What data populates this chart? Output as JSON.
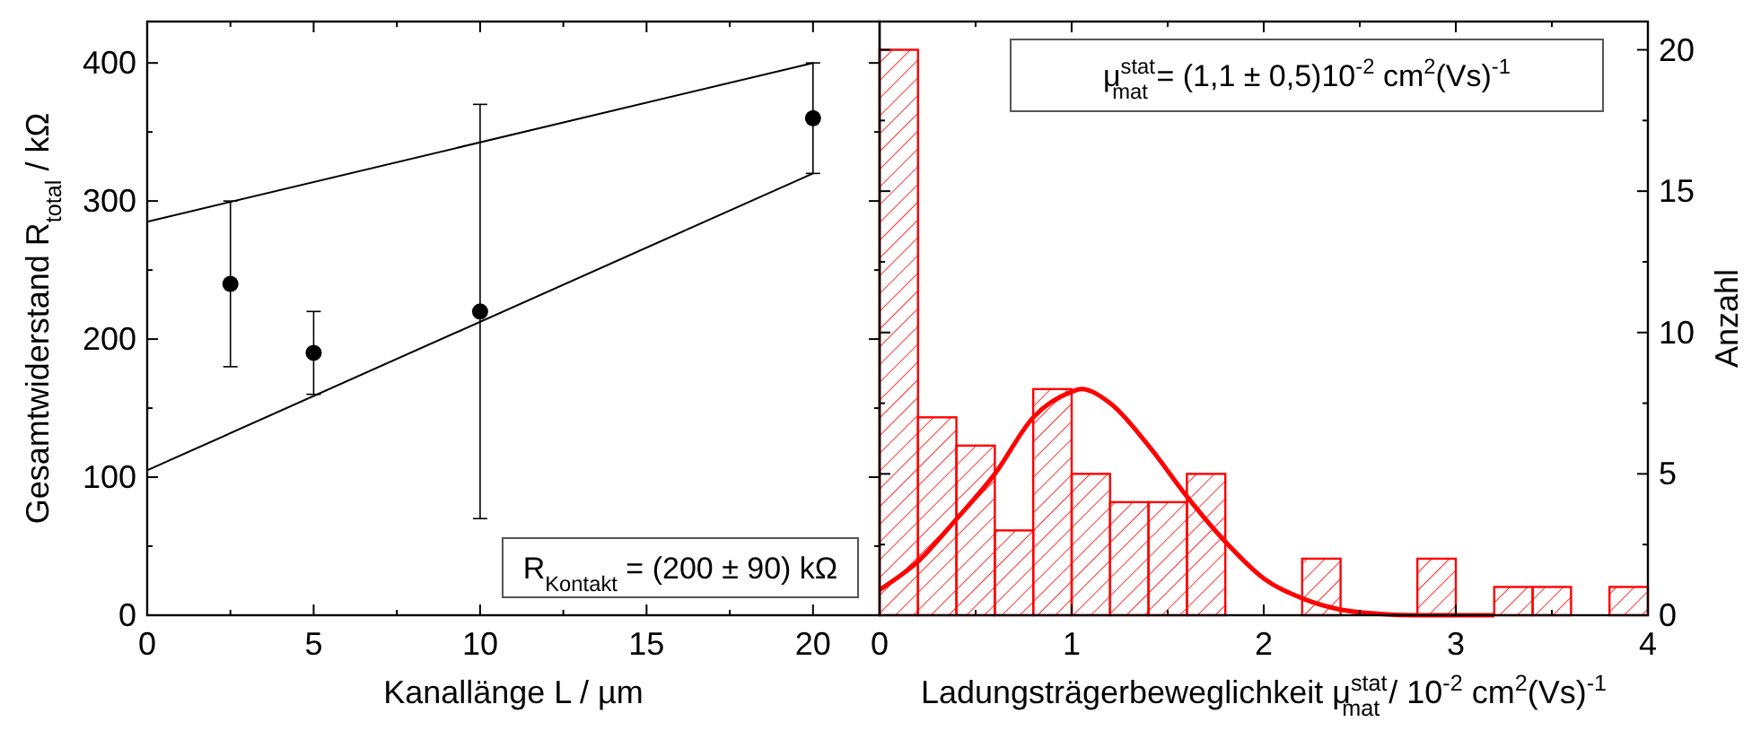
{
  "chart_data": [
    {
      "type": "scatter",
      "xlabel": "Kanallänge L / µm",
      "ylabel": "Gesamtwiderstand R$_{total}$ / kΩ",
      "xlim": [
        0,
        22
      ],
      "ylim": [
        0,
        430
      ],
      "xticks": [
        0,
        {
          "value": 2.5,
          "label": null
        },
        5,
        {
          "value": 7.5,
          "label": null
        },
        10,
        {
          "value": 12.5,
          "label": null
        },
        15,
        {
          "value": 17.5,
          "label": null
        },
        20
      ],
      "yticks": [
        0,
        {
          "value": 50,
          "label": null
        },
        100,
        {
          "value": 150,
          "label": null
        },
        200,
        {
          "value": 250,
          "label": null
        },
        300,
        {
          "value": 350,
          "label": null
        },
        400
      ],
      "grid": false,
      "series": [
        {
          "type": "scatter",
          "marker": "circle",
          "color": "#000000",
          "x": [
            2.5,
            5,
            10,
            20
          ],
          "values": [
            240,
            190,
            220,
            360
          ],
          "errors": [
            [
              180,
              300
            ],
            [
              160,
              220
            ],
            [
              70,
              370
            ],
            [
              320,
              400
            ]
          ]
        },
        {
          "type": "line",
          "color": "#000000",
          "x": [
            0,
            20
          ],
          "values": [
            285,
            400
          ]
        },
        {
          "type": "line",
          "color": "#000000",
          "x": [
            0,
            20
          ],
          "values": [
            105,
            320
          ]
        }
      ],
      "annotations": [
        "R$_{Kontakt}$ = (200 ± 90) kΩ"
      ]
    },
    {
      "type": "histogram",
      "xlabel": "Ladungsträgerbeweglichkeit μ$^{stat}$$_{mat}$ / 10$^{-2}$ cm$^{2}$(Vs)$^{-1}$",
      "ylabel": "Anzahl",
      "xlim": [
        0,
        4
      ],
      "ylim": [
        0,
        21
      ],
      "xticks": [
        0,
        {
          "value": 0.5,
          "label": null
        },
        1,
        {
          "value": 1.5,
          "label": null
        },
        2,
        {
          "value": 2.5,
          "label": null
        },
        3,
        {
          "value": 3.5,
          "label": null
        },
        4
      ],
      "yticks": [
        0,
        {
          "value": 2.5,
          "label": null
        },
        5,
        {
          "value": 7.5,
          "label": null
        },
        10,
        {
          "value": 12.5,
          "label": null
        },
        15,
        {
          "value": 17.5,
          "label": null
        },
        20
      ],
      "grid": false,
      "color": "#ff0000",
      "bins": [
        0,
        0.2,
        0.4,
        0.6,
        0.8,
        1.0,
        1.2,
        1.4,
        1.6,
        1.8,
        2.0,
        2.2,
        2.4,
        2.6,
        2.8,
        3.0,
        3.2,
        3.4,
        3.6,
        3.8,
        4.0
      ],
      "values": [
        20,
        7,
        6,
        3,
        8,
        5,
        4,
        4,
        5,
        0,
        0,
        2,
        0,
        0,
        2,
        0,
        1,
        1,
        0,
        1
      ],
      "series": [
        {
          "type": "line",
          "color": "#ff0000",
          "x": [
            0,
            0.2,
            0.4,
            0.6,
            0.8,
            1.0,
            1.05,
            1.2,
            1.4,
            1.6,
            1.8,
            2.0,
            2.2,
            2.4,
            2.6,
            2.8,
            3.2
          ],
          "values": [
            0.9,
            1.9,
            3.4,
            5.0,
            7.0,
            7.9,
            8.0,
            7.5,
            6.0,
            4.2,
            2.6,
            1.3,
            0.6,
            0.2,
            0.05,
            0,
            0
          ]
        }
      ],
      "annotations": [
        "μ$^{stat}$$_{mat}$ = (1,1 ± 0,5)10$^{-2}$ cm$^{2}$(Vs)$^{-1}$"
      ]
    }
  ]
}
